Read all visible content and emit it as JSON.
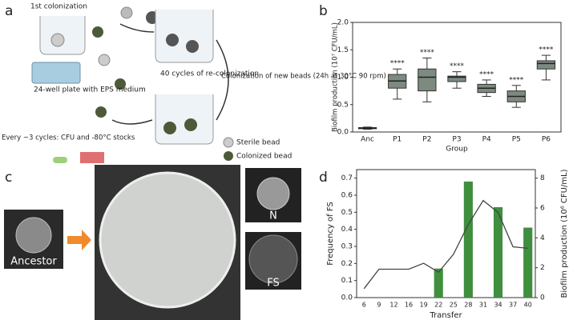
{
  "panels": {
    "a": "a",
    "b": "b",
    "c": "c",
    "d": "d"
  },
  "diagram": {
    "first_colonization": "1st colonization",
    "plate": "24-well plate with EPS medium",
    "cycles": "40 cycles of re-colonization",
    "new_beads": "Colonization of new beads (24h at 30°C 90 rpm)",
    "stocks": "Every ~3 cycles: CFU and -80°C stocks",
    "legend": [
      "Sterile bead",
      "Colonized bead"
    ]
  },
  "images": {
    "ancestor": "Ancestor",
    "n": "N",
    "fs": "FS"
  },
  "chart_data": [
    {
      "type": "box",
      "ylabel": "Biofilm production (10⁷ CFU/mL)",
      "xlabel": "Group",
      "categories": [
        "Anc",
        "P1",
        "P2",
        "P3",
        "P4",
        "P5",
        "P6"
      ],
      "color": "#7d8a80",
      "min": [
        0.05,
        0.6,
        0.55,
        0.8,
        0.65,
        0.45,
        0.95
      ],
      "q1": [
        0.06,
        0.8,
        0.75,
        0.92,
        0.72,
        0.55,
        1.15
      ],
      "median": [
        0.07,
        0.93,
        1.0,
        1.0,
        0.8,
        0.65,
        1.25
      ],
      "q3": [
        0.08,
        1.05,
        1.15,
        1.02,
        0.87,
        0.75,
        1.3
      ],
      "max": [
        0.09,
        1.15,
        1.35,
        1.1,
        0.95,
        0.85,
        1.4
      ],
      "annotations": [
        null,
        "****",
        "****",
        "****",
        "****",
        "****",
        "****"
      ],
      "ylim": [
        0,
        2.0
      ],
      "yticks": [
        {
          "value": 0,
          "label": "0.0"
        },
        {
          "value": 0.5,
          "label": "0.5"
        },
        {
          "value": 1,
          "label": "1.0"
        },
        {
          "value": 1.5,
          "label": "1.5"
        },
        {
          "value": 2,
          "label": "2.0"
        }
      ]
    },
    {
      "type": "combo",
      "xlabel": "Transfer",
      "ylabel": "Frequency of FS",
      "y2label": "Biofilm production (10⁶ CFU/mL)",
      "categories": [
        "6",
        "9",
        "12",
        "16",
        "19",
        "22",
        "25",
        "28",
        "31",
        "34",
        "37",
        "40"
      ],
      "series": [
        {
          "color": "#3f8f3f",
          "values": [
            null,
            null,
            null,
            null,
            null,
            0.17,
            null,
            0.68,
            null,
            0.53,
            null,
            0.41
          ]
        },
        {
          "color": "#444444",
          "axis": "y2",
          "values": [
            0.6,
            1.9,
            1.9,
            1.9,
            2.3,
            1.7,
            2.9,
            4.9,
            6.5,
            5.7,
            3.4,
            3.3
          ]
        }
      ],
      "ylim": [
        0,
        0.75
      ],
      "yticks": [
        {
          "value": 0,
          "label": "0.0"
        },
        0.1,
        0.2,
        0.3,
        0.4,
        0.5,
        0.6,
        0.7
      ],
      "y2lim": [
        0,
        8.57
      ],
      "y2ticks": [
        0,
        2,
        4,
        6,
        8
      ]
    }
  ]
}
